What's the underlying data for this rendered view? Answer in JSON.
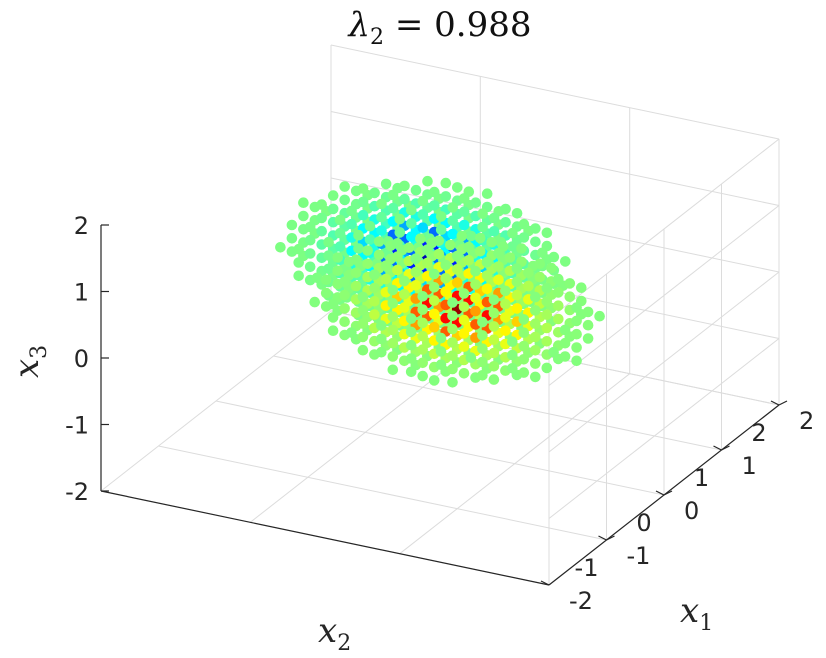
{
  "chart_data": {
    "type": "scatter3d",
    "title": {
      "symbol": "λ",
      "subscript": "2",
      "text": " = 0.988"
    },
    "xlabel": {
      "symbol": "x",
      "subscript": "1"
    },
    "ylabel": {
      "symbol": "x",
      "subscript": "2"
    },
    "zlabel": {
      "symbol": "x",
      "subscript": "3"
    },
    "xlim": [
      -2,
      2
    ],
    "ylim": [
      -1,
      2
    ],
    "zlim": [
      -2,
      2
    ],
    "x_ticks": [
      "-2",
      "-1",
      "0",
      "1",
      "2"
    ],
    "y_ticks": [
      "-1",
      "0",
      "1",
      "2"
    ],
    "z_ticks": [
      "-2",
      "-1",
      "0",
      "1",
      "2"
    ],
    "grid": true,
    "colormap": "jet",
    "color_range": [
      -1,
      1
    ],
    "point_spacing": 0.2,
    "clusters": [
      {
        "center": [
          1,
          1,
          0
        ],
        "radius": 0.9,
        "peak_color_value": -0.9
      },
      {
        "center": [
          -1,
          0,
          1
        ],
        "radius": 0.9,
        "peak_color_value": 0.95
      }
    ]
  }
}
